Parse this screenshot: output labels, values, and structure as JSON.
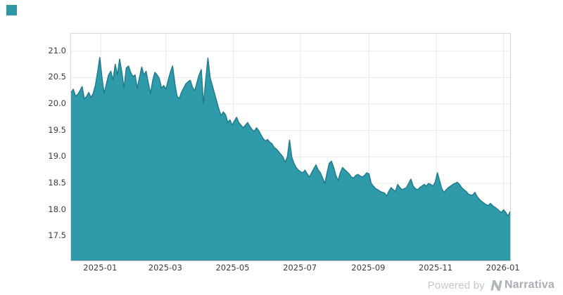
{
  "page": {
    "background": "#ffffff"
  },
  "logo": {
    "square_color": "#2e97a6"
  },
  "footer": {
    "powered_by": "Powered by",
    "brand": "Narrativa",
    "brand_mark": "narrativa-n-icon",
    "text_color": "#c4c8cb",
    "brand_color": "#a9aeb2"
  },
  "chart_data": {
    "type": "area",
    "title": "",
    "xlabel": "",
    "ylabel": "",
    "legend": "none",
    "grid": true,
    "x_start_date": "2024-12-05",
    "x_step_days": 2,
    "x_ticks": [
      "2025-01",
      "2025-03",
      "2025-05",
      "2025-07",
      "2025-09",
      "2025-11",
      "2026-01"
    ],
    "y_ticks": [
      "21.0",
      "20.5",
      "20.0",
      "19.5",
      "19.0",
      "18.5",
      "18.0",
      "17.5"
    ],
    "y_domain": [
      17.04,
      21.33
    ],
    "fill_color": "#2f9aa9",
    "line_color": "#1f7e8e",
    "grid_color": "#ebebeb",
    "border_color": "#d9d9d9",
    "tick_label_color": "#3d3d3d",
    "values": [
      20.22,
      20.28,
      20.15,
      20.18,
      20.25,
      20.33,
      20.1,
      20.14,
      20.22,
      20.12,
      20.2,
      20.35,
      20.6,
      20.88,
      20.5,
      20.2,
      20.38,
      20.55,
      20.62,
      20.45,
      20.75,
      20.55,
      20.85,
      20.6,
      20.3,
      20.68,
      20.72,
      20.6,
      20.52,
      20.55,
      20.3,
      20.5,
      20.7,
      20.55,
      20.62,
      20.4,
      20.2,
      20.45,
      20.6,
      20.55,
      20.48,
      20.3,
      20.35,
      20.28,
      20.45,
      20.6,
      20.72,
      20.4,
      20.15,
      20.1,
      20.22,
      20.3,
      20.38,
      20.42,
      20.45,
      20.32,
      20.25,
      20.4,
      20.55,
      20.65,
      20.0,
      20.45,
      20.87,
      20.5,
      20.35,
      20.2,
      20.05,
      19.9,
      19.78,
      19.85,
      19.8,
      19.65,
      19.7,
      19.6,
      19.68,
      19.75,
      19.65,
      19.6,
      19.55,
      19.6,
      19.65,
      19.58,
      19.52,
      19.48,
      19.55,
      19.5,
      19.42,
      19.35,
      19.3,
      19.33,
      19.28,
      19.25,
      19.18,
      19.15,
      19.1,
      19.05,
      19.0,
      18.9,
      19.0,
      19.32,
      19.0,
      18.88,
      18.8,
      18.75,
      18.72,
      18.7,
      18.75,
      18.68,
      18.62,
      18.7,
      18.78,
      18.85,
      18.75,
      18.7,
      18.6,
      18.5,
      18.7,
      18.88,
      18.92,
      18.8,
      18.65,
      18.55,
      18.7,
      18.8,
      18.76,
      18.72,
      18.68,
      18.62,
      18.6,
      18.65,
      18.67,
      18.64,
      18.62,
      18.65,
      18.7,
      18.68,
      18.5,
      18.45,
      18.4,
      18.38,
      18.35,
      18.33,
      18.32,
      18.26,
      18.35,
      18.42,
      18.38,
      18.35,
      18.48,
      18.42,
      18.38,
      18.4,
      18.42,
      18.5,
      18.58,
      18.45,
      18.4,
      18.38,
      18.42,
      18.45,
      18.48,
      18.45,
      18.5,
      18.48,
      18.45,
      18.52,
      18.7,
      18.55,
      18.4,
      18.33,
      18.38,
      18.42,
      18.45,
      18.48,
      18.5,
      18.52,
      18.48,
      18.42,
      18.38,
      18.35,
      18.3,
      18.28,
      18.28,
      18.33,
      18.25,
      18.2,
      18.16,
      18.13,
      18.1,
      18.08,
      18.12,
      18.08,
      18.05,
      18.02,
      17.98,
      17.95,
      18.0,
      17.95,
      17.88,
      17.97
    ]
  }
}
